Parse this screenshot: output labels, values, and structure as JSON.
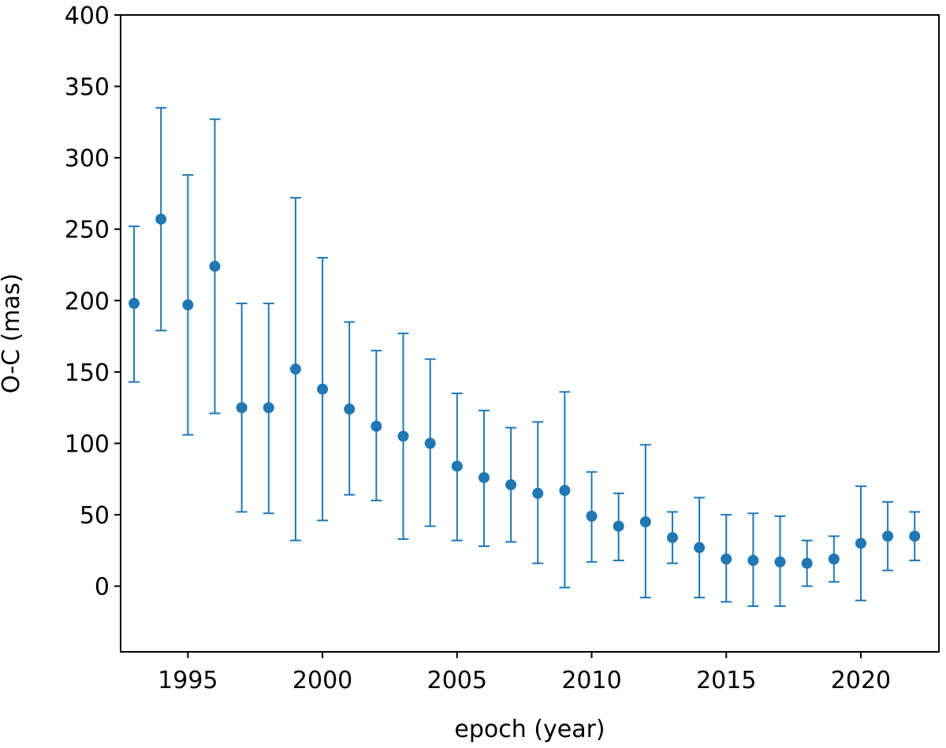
{
  "chart_data": {
    "type": "scatter",
    "title": "",
    "xlabel": "epoch (year)",
    "ylabel": "O-C (mas)",
    "xlim": [
      1992.5,
      2022.9
    ],
    "ylim": [
      -46,
      400
    ],
    "x_ticks": [
      1995,
      2000,
      2005,
      2010,
      2015,
      2020
    ],
    "y_ticks": [
      0,
      50,
      100,
      150,
      200,
      250,
      300,
      350,
      400
    ],
    "grid": false,
    "legend": "none",
    "colors": {
      "series": "#1f77b4",
      "axes": "#000000"
    },
    "series": [
      {
        "x": [
          1993,
          1994,
          1995,
          1996,
          1997,
          1998,
          1999,
          2000,
          2001,
          2002,
          2003,
          2004,
          2005,
          2006,
          2007,
          2008,
          2009,
          2010,
          2011,
          2012,
          2013,
          2014,
          2015,
          2016,
          2017,
          2018,
          2019,
          2020,
          2021,
          2022
        ],
        "y": [
          198,
          257,
          197,
          224,
          125,
          125,
          152,
          138,
          124,
          112,
          105,
          100,
          84,
          76,
          71,
          65,
          67,
          49,
          42,
          45,
          34,
          27,
          19,
          18,
          17,
          16,
          19,
          30,
          35,
          35
        ],
        "y_lower": [
          143,
          179,
          106,
          121,
          52,
          51,
          32,
          46,
          64,
          60,
          33,
          42,
          32,
          28,
          31,
          16,
          -1,
          17,
          18,
          -8,
          16,
          -8,
          -11,
          -14,
          -14,
          0,
          3,
          -10,
          11,
          18
        ],
        "y_upper": [
          252,
          335,
          288,
          327,
          198,
          198,
          272,
          230,
          185,
          165,
          177,
          159,
          135,
          123,
          111,
          115,
          136,
          80,
          65,
          99,
          52,
          62,
          50,
          51,
          49,
          32,
          35,
          70,
          59,
          52
        ]
      }
    ]
  }
}
